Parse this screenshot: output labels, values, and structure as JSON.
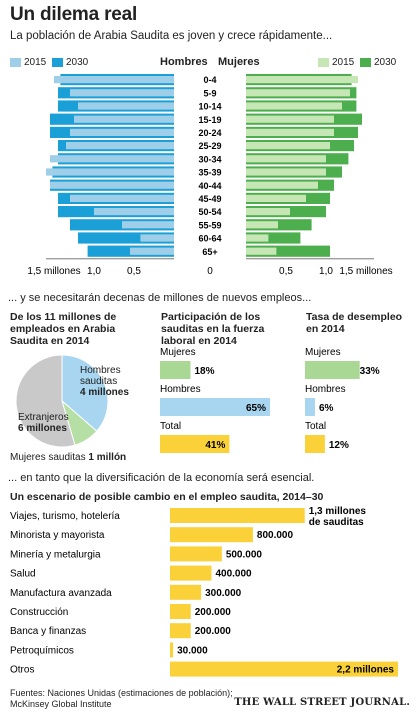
{
  "title": "Un dilema real",
  "subtitle": "La población de Arabia Saudita es joven y crece rápidamente...",
  "pyramid": {
    "left_header": "Hombres",
    "right_header": "Mujeres",
    "legend_left": [
      {
        "label": "2015",
        "color": "#9fcfe8"
      },
      {
        "label": "2030",
        "color": "#1a9fd6"
      }
    ],
    "legend_right": [
      {
        "label": "2015",
        "color": "#c6e6b5"
      },
      {
        "label": "2030",
        "color": "#4cae4c"
      }
    ],
    "x_ticks": [
      "1,5 millones",
      "1,0",
      "0,5",
      "0",
      "0,5",
      "1,0",
      "1,5 millones"
    ]
  },
  "section2_title": "... y se necesitarán decenas de millones de nuevos empleos...",
  "section3_title": "... en tanto que la diversificación de la economía será esencial.",
  "colors": {
    "pie_foreign": "#c9c9c9",
    "pie_men": "#a8d5f0",
    "pie_women": "#b5dfa5",
    "bar_women": "#a9d894",
    "bar_men": "#a8d5f0",
    "bar_total": "#fbd13a",
    "bar_scenario": "#fbd13a",
    "men_2015": "#9fcfe8",
    "men_2030": "#1a9fd6",
    "women_2015": "#c6e6b5",
    "women_2030": "#4cae4c"
  },
  "pie": {
    "title": "De los 11 millones de empleados en Arabia Saudita en 2014",
    "labels": {
      "men_name": "Hombres sauditas",
      "men_value": "4 millones",
      "foreign_name": "Extranjeros",
      "foreign_value": "6 millones",
      "women_name": "Mujeres sauditas",
      "women_value": "1 millón"
    }
  },
  "participation": {
    "title": "Participación de los sauditas en la fuerza laboral en 2014"
  },
  "unemployment": {
    "title": "Tasa de desempleo en 2014"
  },
  "scenario": {
    "title": "Un escenario de posible cambio en el empleo saudita, 2014–30"
  },
  "source": {
    "line1": "Fuentes: Naciones Unidas (estimaciones de población);",
    "line2": "McKinsey Global Institute"
  },
  "brand": "THE WALL STREET JOURNAL.",
  "chart_data": [
    {
      "type": "bar",
      "orientation": "horizontal-butterfly",
      "categories": [
        "0-4",
        "5-9",
        "10-14",
        "15-19",
        "20-24",
        "25-29",
        "30-34",
        "35-39",
        "40-44",
        "45-49",
        "50-54",
        "55-59",
        "60-64",
        "65+"
      ],
      "xlim": [
        -1.5,
        1.5
      ],
      "series": [
        {
          "name": "Hombres 2015",
          "values": [
            1.5,
            1.3,
            1.2,
            1.25,
            1.3,
            1.35,
            1.55,
            1.6,
            1.55,
            1.3,
            1.0,
            0.65,
            0.42,
            0.55
          ]
        },
        {
          "name": "Hombres 2030",
          "values": [
            1.42,
            1.45,
            1.45,
            1.55,
            1.55,
            1.45,
            1.45,
            1.52,
            1.55,
            1.45,
            1.45,
            1.3,
            1.2,
            1.08
          ]
        },
        {
          "name": "Mujeres 2015",
          "values": [
            1.4,
            1.3,
            1.2,
            1.1,
            1.1,
            1.05,
            1.0,
            1.0,
            0.9,
            0.75,
            0.55,
            0.4,
            0.28,
            0.38
          ]
        },
        {
          "name": "Mujeres 2030",
          "values": [
            1.32,
            1.38,
            1.38,
            1.45,
            1.4,
            1.35,
            1.28,
            1.2,
            1.1,
            1.05,
            1.0,
            0.82,
            0.68,
            1.05
          ]
        }
      ]
    },
    {
      "type": "pie",
      "categories": [
        "Hombres sauditas",
        "Mujeres sauditas",
        "Extranjeros"
      ],
      "values": [
        4,
        1,
        6
      ],
      "unit": "millones"
    },
    {
      "type": "bar",
      "categories": [
        "Mujeres",
        "Hombres",
        "Total"
      ],
      "values": [
        18,
        65,
        41
      ],
      "value_labels": [
        "18%",
        "65%",
        "41%"
      ],
      "xlim": [
        0,
        65
      ]
    },
    {
      "type": "bar",
      "categories": [
        "Mujeres",
        "Hombres",
        "Total"
      ],
      "values": [
        33,
        6,
        12
      ],
      "value_labels": [
        "33%",
        "6%",
        "12%"
      ],
      "xlim": [
        0,
        35
      ]
    },
    {
      "type": "bar",
      "categories": [
        "Viajes, turismo, hotelería",
        "Minorista y mayorista",
        "Minería y metalurgia",
        "Salud",
        "Manufactura avanzada",
        "Construcción",
        "Banca y finanzas",
        "Petroquímicos",
        "Otros"
      ],
      "values": [
        1300000,
        800000,
        500000,
        400000,
        300000,
        200000,
        200000,
        30000,
        2200000
      ],
      "value_labels": [
        "1,3 millones de sauditas",
        "800.000",
        "500.000",
        "400.000",
        "300.000",
        "200.000",
        "200.000",
        "30.000",
        "2,2 millones"
      ],
      "xlim": [
        0,
        2200000
      ]
    }
  ]
}
